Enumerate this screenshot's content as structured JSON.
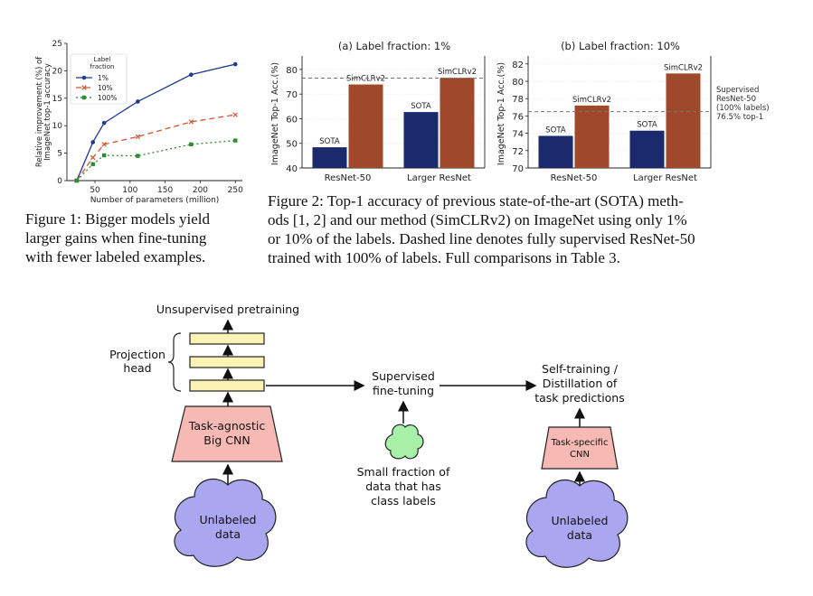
{
  "figure1": {
    "caption_lines": [
      "Figure 1:  Bigger models yield",
      "larger gains when fine-tuning",
      "with fewer labeled examples."
    ],
    "chart_data": {
      "type": "line",
      "xlabel": "Number of parameters (million)",
      "ylabel_lines": [
        "Relative improvement (%) of",
        "ImageNet top-1 accuracy"
      ],
      "xlim": [
        10,
        260
      ],
      "ylim": [
        0,
        25
      ],
      "xticks": [
        50,
        100,
        150,
        200,
        250
      ],
      "yticks": [
        0,
        5,
        10,
        15,
        20,
        25
      ],
      "legend_title_lines": [
        "Label",
        "fraction"
      ],
      "legend_position": "upper-left",
      "series": [
        {
          "name": "1%",
          "color": "#1f3a93",
          "dash": "",
          "marker": "circle",
          "x": [
            24,
            47,
            63,
            111,
            187,
            250
          ],
          "y": [
            0,
            7,
            10.5,
            14.4,
            19.3,
            21.2
          ]
        },
        {
          "name": "10%",
          "color": "#cc5533",
          "dash": "6,4",
          "marker": "x",
          "x": [
            24,
            47,
            63,
            111,
            187,
            250
          ],
          "y": [
            0,
            4.2,
            6.6,
            8.0,
            10.7,
            12.0
          ]
        },
        {
          "name": "100%",
          "color": "#2e8b2e",
          "dash": "2,3",
          "marker": "square",
          "x": [
            24,
            47,
            63,
            111,
            187,
            250
          ],
          "y": [
            0,
            3.0,
            4.6,
            4.5,
            6.6,
            7.3
          ]
        }
      ]
    }
  },
  "figure2": {
    "caption_lines": [
      "Figure 2:  Top-1 accuracy of previous state-of-the-art (SOTA) meth-",
      "ods [1, 2] and our method (SimCLRv2) on ImageNet using only 1%",
      "or 10% of the labels. Dashed line denotes fully supervised ResNet-50",
      "trained with 100% of labels. Full comparisons in Table  3."
    ],
    "colors": {
      "sota": "#1a2a6c",
      "simclr": "#a0482a"
    },
    "chart_data": [
      {
        "type": "bar",
        "title": "(a) Label fraction: 1%",
        "ylabel": "ImageNet Top-1 Acc.(%)",
        "ylim": [
          40,
          84
        ],
        "yticks": [
          40,
          50,
          60,
          70,
          80
        ],
        "categories": [
          "ResNet-50",
          "Larger ResNet"
        ],
        "series": [
          {
            "name": "SOTA",
            "values": [
              48.4,
              62.7
            ]
          },
          {
            "name": "SimCLRv2",
            "values": [
              73.9,
              76.6
            ]
          }
        ],
        "reference_line": 76.5
      },
      {
        "type": "bar",
        "title": "(b) Label fraction: 10%",
        "ylabel": "ImageNet Top-1 Acc.(%)",
        "ylim": [
          70,
          82.5
        ],
        "yticks": [
          70,
          72,
          74,
          76,
          78,
          80,
          82
        ],
        "categories": [
          "ResNet-50",
          "Larger ResNet"
        ],
        "series": [
          {
            "name": "SOTA",
            "values": [
              73.7,
              74.3
            ]
          },
          {
            "name": "SimCLRv2",
            "values": [
              77.2,
              80.9
            ]
          }
        ],
        "reference_line": 76.5,
        "reference_label_lines": [
          "Supervised",
          "ResNet-50",
          "(100% labels)",
          "76.5% top-1"
        ]
      }
    ]
  },
  "diagram": {
    "unsupervised_pretraining": "Unsupervised pretraining",
    "projection_head_lines": [
      "Projection",
      "head"
    ],
    "big_cnn_lines": [
      "Task-agnostic",
      "Big CNN"
    ],
    "unlabeled_data_lines": [
      "Unlabeled",
      "data"
    ],
    "supervised_finetuning_lines": [
      "Supervised",
      "fine-tuning"
    ],
    "small_fraction_lines": [
      "Small fraction of",
      "data that has",
      "class labels"
    ],
    "self_training_lines": [
      "Self-training /",
      "Distillation of",
      "task predictions"
    ],
    "task_specific_cnn_lines": [
      "Task-specific",
      "CNN"
    ],
    "colors": {
      "cnn_fill": "#f6b9b3",
      "head_fill": "#fbf3b5",
      "cloud_fill": "#aaa6ef",
      "small_cloud_fill": "#a8f0a8"
    }
  }
}
